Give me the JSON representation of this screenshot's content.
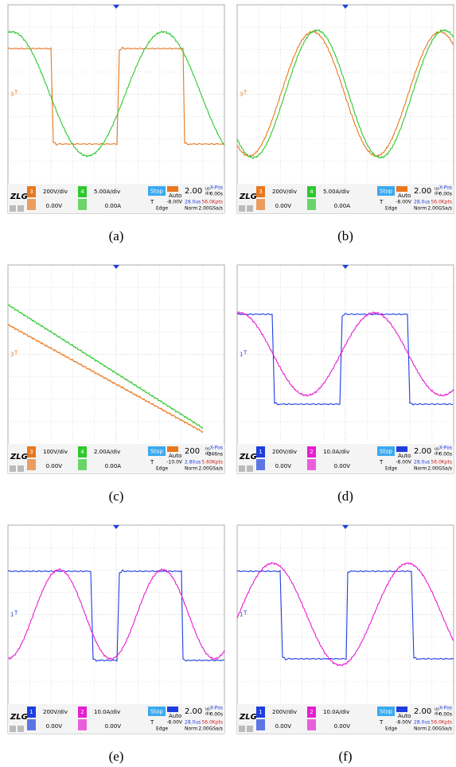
{
  "figure": {
    "logo": "ZLG",
    "panels": [
      {
        "caption": "(a)",
        "ch1": {
          "num": "3",
          "color": "#e8781e",
          "scale": "200V/div",
          "offset": "0.00V"
        },
        "ch2": {
          "num": "4",
          "color": "#2ec82e",
          "scale": "5.00A/div",
          "offset": "0.00A"
        },
        "status": "Stop",
        "mode": "Auto",
        "timebase": "2.00",
        "tb_unit": "us",
        "tb_div": "div",
        "xpos_label": "X-Pos",
        "xpos": "0.00s",
        "trig_label": "T",
        "trig_level": "-8.00V",
        "delay": "28.0us",
        "pts": "56.0Kpts",
        "edge": "Edge",
        "norm": "Norm",
        "rate": "2.00GSa/s"
      },
      {
        "caption": "(b)",
        "ch1": {
          "num": "3",
          "color": "#e8781e",
          "scale": "200V/div",
          "offset": "0.00V"
        },
        "ch2": {
          "num": "4",
          "color": "#2ec82e",
          "scale": "5.00A/div",
          "offset": "0.00A"
        },
        "status": "Stop",
        "mode": "Auto",
        "timebase": "2.00",
        "tb_unit": "us",
        "tb_div": "div",
        "xpos_label": "X-Pos",
        "xpos": "0.00s",
        "trig_label": "T",
        "trig_level": "-8.00V",
        "delay": "28.0us",
        "pts": "56.0Kpts",
        "edge": "Edge",
        "norm": "Norm",
        "rate": "2.00GSa/s"
      },
      {
        "caption": "(c)",
        "ch1": {
          "num": "3",
          "color": "#e8781e",
          "scale": "100V/div",
          "offset": "0.00V"
        },
        "ch2": {
          "num": "4",
          "color": "#2ec82e",
          "scale": "2.00A/div",
          "offset": "0.00A"
        },
        "status": "Stop",
        "mode": "Auto",
        "timebase": "200",
        "tb_unit": "ns",
        "tb_div": "div",
        "xpos_label": "X-Pos",
        "xpos": "-246ns",
        "trig_label": "T",
        "trig_level": "-10.0V",
        "delay": "2.80us",
        "pts": "5.60Kpts",
        "edge": "Edge",
        "norm": "Norm",
        "rate": "2.00GSa/s"
      },
      {
        "caption": "(d)",
        "ch1": {
          "num": "1",
          "color": "#1e3ee0",
          "scale": "200V/div",
          "offset": "0.00V"
        },
        "ch2": {
          "num": "2",
          "color": "#e61ed2",
          "scale": "10.0A/div",
          "offset": "0.00V"
        },
        "status": "Stop",
        "mode": "Auto",
        "timebase": "2.00",
        "tb_unit": "us",
        "tb_div": "div",
        "xpos_label": "X-Pos",
        "xpos": "0.00s",
        "trig_label": "T",
        "trig_level": "-8.00V",
        "delay": "28.0us",
        "pts": "56.0Kpts",
        "edge": "Edge",
        "norm": "Norm",
        "rate": "2.00GSa/s"
      },
      {
        "caption": "(e)",
        "ch1": {
          "num": "1",
          "color": "#1e3ee0",
          "scale": "200V/div",
          "offset": "0.00V"
        },
        "ch2": {
          "num": "2",
          "color": "#e61ed2",
          "scale": "10.0A/div",
          "offset": "0.00V"
        },
        "status": "Stop",
        "mode": "Auto",
        "timebase": "2.00",
        "tb_unit": "us",
        "tb_div": "div",
        "xpos_label": "X-Pos",
        "xpos": "0.00s",
        "trig_label": "T",
        "trig_level": "-8.00V",
        "delay": "28.0us",
        "pts": "56.0Kpts",
        "edge": "Edge",
        "norm": "Norm",
        "rate": "2.00GSa/s"
      },
      {
        "caption": "(f)",
        "ch1": {
          "num": "1",
          "color": "#1e3ee0",
          "scale": "200V/div",
          "offset": "0.00V"
        },
        "ch2": {
          "num": "2",
          "color": "#e61ed2",
          "scale": "10.0A/div",
          "offset": "0.00V"
        },
        "status": "Stop",
        "mode": "Auto",
        "timebase": "2.00",
        "tb_unit": "us",
        "tb_div": "div",
        "xpos_label": "X-Pos",
        "xpos": "0.00s",
        "trig_label": "T",
        "trig_level": "-8.00V",
        "delay": "28.0us",
        "pts": "56.0Kpts",
        "edge": "Edge",
        "norm": "Norm",
        "rate": "2.00GSa/s"
      }
    ]
  }
}
